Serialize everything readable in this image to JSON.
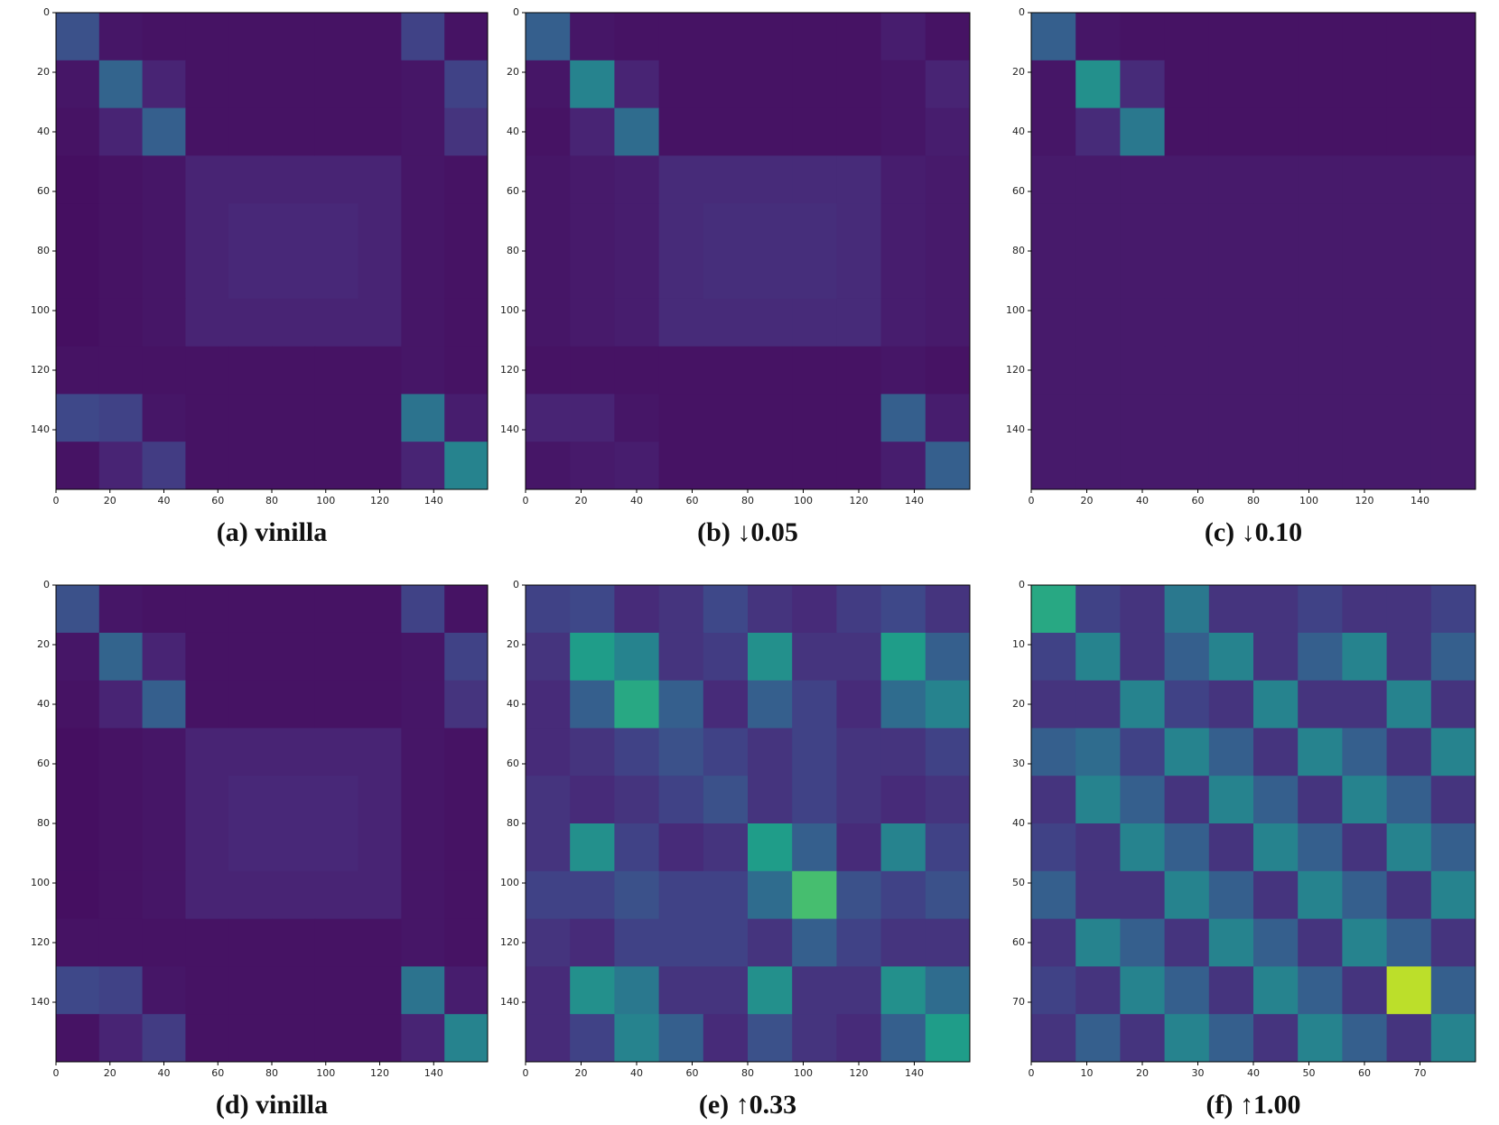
{
  "chart_data": [
    {
      "type": "heatmap",
      "caption": "(a) vinilla",
      "colormap": "viridis",
      "zlim": [
        0,
        1
      ],
      "y_inverted": true,
      "xlim": [
        0,
        160
      ],
      "ylim": [
        0,
        160
      ],
      "xticks": [
        0,
        20,
        40,
        60,
        80,
        100,
        120,
        140
      ],
      "yticks": [
        0,
        20,
        40,
        60,
        80,
        100,
        120,
        140
      ],
      "z": [
        [
          0.25,
          0.06,
          0.05,
          0.05,
          0.05,
          0.05,
          0.05,
          0.05,
          0.2,
          0.05
        ],
        [
          0.06,
          0.32,
          0.1,
          0.05,
          0.05,
          0.05,
          0.05,
          0.05,
          0.06,
          0.2
        ],
        [
          0.05,
          0.1,
          0.3,
          0.05,
          0.05,
          0.05,
          0.05,
          0.05,
          0.06,
          0.15
        ],
        [
          0.04,
          0.05,
          0.06,
          0.1,
          0.1,
          0.1,
          0.1,
          0.1,
          0.06,
          0.05
        ],
        [
          0.04,
          0.05,
          0.06,
          0.1,
          0.11,
          0.11,
          0.11,
          0.1,
          0.06,
          0.05
        ],
        [
          0.04,
          0.05,
          0.06,
          0.1,
          0.11,
          0.11,
          0.11,
          0.1,
          0.06,
          0.05
        ],
        [
          0.04,
          0.05,
          0.06,
          0.1,
          0.1,
          0.1,
          0.1,
          0.1,
          0.06,
          0.05
        ],
        [
          0.05,
          0.05,
          0.05,
          0.05,
          0.05,
          0.05,
          0.05,
          0.05,
          0.06,
          0.05
        ],
        [
          0.22,
          0.2,
          0.06,
          0.05,
          0.05,
          0.05,
          0.05,
          0.05,
          0.38,
          0.08
        ],
        [
          0.05,
          0.1,
          0.18,
          0.05,
          0.05,
          0.05,
          0.05,
          0.05,
          0.1,
          0.45
        ]
      ]
    },
    {
      "type": "heatmap",
      "caption": "(b) ↓0.05",
      "colormap": "viridis",
      "zlim": [
        0,
        1
      ],
      "y_inverted": true,
      "xlim": [
        0,
        160
      ],
      "ylim": [
        0,
        160
      ],
      "xticks": [
        0,
        20,
        40,
        60,
        80,
        100,
        120,
        140
      ],
      "yticks": [
        0,
        20,
        40,
        60,
        80,
        100,
        120,
        140
      ],
      "z": [
        [
          0.3,
          0.06,
          0.05,
          0.05,
          0.05,
          0.05,
          0.05,
          0.05,
          0.08,
          0.05
        ],
        [
          0.06,
          0.45,
          0.1,
          0.05,
          0.05,
          0.05,
          0.05,
          0.05,
          0.06,
          0.1
        ],
        [
          0.05,
          0.1,
          0.35,
          0.05,
          0.05,
          0.05,
          0.05,
          0.05,
          0.06,
          0.08
        ],
        [
          0.06,
          0.07,
          0.08,
          0.12,
          0.12,
          0.12,
          0.12,
          0.12,
          0.08,
          0.07
        ],
        [
          0.06,
          0.07,
          0.08,
          0.12,
          0.13,
          0.13,
          0.13,
          0.12,
          0.08,
          0.07
        ],
        [
          0.06,
          0.07,
          0.08,
          0.12,
          0.13,
          0.13,
          0.13,
          0.12,
          0.08,
          0.07
        ],
        [
          0.06,
          0.07,
          0.08,
          0.12,
          0.12,
          0.12,
          0.12,
          0.12,
          0.08,
          0.07
        ],
        [
          0.05,
          0.05,
          0.05,
          0.05,
          0.05,
          0.05,
          0.05,
          0.05,
          0.06,
          0.05
        ],
        [
          0.1,
          0.1,
          0.06,
          0.05,
          0.05,
          0.05,
          0.05,
          0.05,
          0.3,
          0.08
        ],
        [
          0.06,
          0.07,
          0.08,
          0.05,
          0.05,
          0.05,
          0.05,
          0.05,
          0.08,
          0.3
        ]
      ]
    },
    {
      "type": "heatmap",
      "caption": "(c) ↓0.10",
      "colormap": "viridis",
      "zlim": [
        0,
        1
      ],
      "y_inverted": true,
      "xlim": [
        0,
        160
      ],
      "ylim": [
        0,
        160
      ],
      "xticks": [
        0,
        20,
        40,
        60,
        80,
        100,
        120,
        140
      ],
      "yticks": [
        0,
        20,
        40,
        60,
        80,
        100,
        120,
        140
      ],
      "z": [
        [
          0.3,
          0.06,
          0.05,
          0.05,
          0.05,
          0.05,
          0.05,
          0.05,
          0.05,
          0.05
        ],
        [
          0.06,
          0.5,
          0.12,
          0.05,
          0.05,
          0.05,
          0.05,
          0.05,
          0.05,
          0.05
        ],
        [
          0.06,
          0.12,
          0.4,
          0.05,
          0.05,
          0.05,
          0.05,
          0.05,
          0.05,
          0.05
        ],
        [
          0.07,
          0.07,
          0.07,
          0.07,
          0.07,
          0.07,
          0.07,
          0.07,
          0.07,
          0.07
        ],
        [
          0.07,
          0.07,
          0.07,
          0.07,
          0.07,
          0.07,
          0.07,
          0.07,
          0.07,
          0.07
        ],
        [
          0.07,
          0.07,
          0.07,
          0.07,
          0.07,
          0.07,
          0.07,
          0.07,
          0.07,
          0.07
        ],
        [
          0.07,
          0.07,
          0.07,
          0.07,
          0.07,
          0.07,
          0.07,
          0.07,
          0.07,
          0.07
        ],
        [
          0.07,
          0.07,
          0.07,
          0.07,
          0.07,
          0.07,
          0.07,
          0.07,
          0.07,
          0.07
        ],
        [
          0.07,
          0.07,
          0.07,
          0.07,
          0.07,
          0.07,
          0.07,
          0.07,
          0.07,
          0.07
        ],
        [
          0.07,
          0.07,
          0.07,
          0.07,
          0.07,
          0.07,
          0.07,
          0.07,
          0.07,
          0.07
        ]
      ]
    },
    {
      "type": "heatmap",
      "caption": "(d) vinilla",
      "colormap": "viridis",
      "zlim": [
        0,
        1
      ],
      "y_inverted": true,
      "xlim": [
        0,
        160
      ],
      "ylim": [
        0,
        160
      ],
      "xticks": [
        0,
        20,
        40,
        60,
        80,
        100,
        120,
        140
      ],
      "yticks": [
        0,
        20,
        40,
        60,
        80,
        100,
        120,
        140
      ],
      "z": [
        [
          0.25,
          0.06,
          0.05,
          0.05,
          0.05,
          0.05,
          0.05,
          0.05,
          0.2,
          0.05
        ],
        [
          0.06,
          0.32,
          0.1,
          0.05,
          0.05,
          0.05,
          0.05,
          0.05,
          0.06,
          0.2
        ],
        [
          0.05,
          0.1,
          0.3,
          0.05,
          0.05,
          0.05,
          0.05,
          0.05,
          0.06,
          0.15
        ],
        [
          0.04,
          0.05,
          0.06,
          0.1,
          0.1,
          0.1,
          0.1,
          0.1,
          0.06,
          0.05
        ],
        [
          0.04,
          0.05,
          0.06,
          0.1,
          0.11,
          0.11,
          0.11,
          0.1,
          0.06,
          0.05
        ],
        [
          0.04,
          0.05,
          0.06,
          0.1,
          0.11,
          0.11,
          0.11,
          0.1,
          0.06,
          0.05
        ],
        [
          0.04,
          0.05,
          0.06,
          0.1,
          0.1,
          0.1,
          0.1,
          0.1,
          0.06,
          0.05
        ],
        [
          0.05,
          0.05,
          0.05,
          0.05,
          0.05,
          0.05,
          0.05,
          0.05,
          0.06,
          0.05
        ],
        [
          0.22,
          0.2,
          0.06,
          0.05,
          0.05,
          0.05,
          0.05,
          0.05,
          0.38,
          0.08
        ],
        [
          0.05,
          0.1,
          0.18,
          0.05,
          0.05,
          0.05,
          0.05,
          0.05,
          0.1,
          0.45
        ]
      ]
    },
    {
      "type": "heatmap",
      "caption": "(e) ↑0.33",
      "colormap": "viridis",
      "zlim": [
        0,
        1
      ],
      "y_inverted": true,
      "xlim": [
        0,
        160
      ],
      "ylim": [
        0,
        160
      ],
      "xticks": [
        0,
        20,
        40,
        60,
        80,
        100,
        120,
        140
      ],
      "yticks": [
        0,
        20,
        40,
        60,
        80,
        100,
        120,
        140
      ],
      "z": [
        [
          0.2,
          0.22,
          0.12,
          0.15,
          0.22,
          0.15,
          0.12,
          0.18,
          0.22,
          0.15
        ],
        [
          0.15,
          0.55,
          0.45,
          0.15,
          0.18,
          0.5,
          0.15,
          0.15,
          0.55,
          0.3
        ],
        [
          0.12,
          0.3,
          0.6,
          0.3,
          0.12,
          0.3,
          0.2,
          0.12,
          0.35,
          0.45
        ],
        [
          0.12,
          0.15,
          0.2,
          0.25,
          0.2,
          0.15,
          0.2,
          0.15,
          0.15,
          0.2
        ],
        [
          0.15,
          0.12,
          0.15,
          0.2,
          0.25,
          0.15,
          0.2,
          0.15,
          0.12,
          0.15
        ],
        [
          0.15,
          0.5,
          0.2,
          0.12,
          0.15,
          0.55,
          0.3,
          0.12,
          0.45,
          0.2
        ],
        [
          0.2,
          0.2,
          0.25,
          0.2,
          0.2,
          0.35,
          0.7,
          0.25,
          0.2,
          0.25
        ],
        [
          0.15,
          0.12,
          0.2,
          0.2,
          0.2,
          0.15,
          0.3,
          0.2,
          0.15,
          0.15
        ],
        [
          0.12,
          0.5,
          0.4,
          0.15,
          0.15,
          0.5,
          0.15,
          0.15,
          0.5,
          0.35
        ],
        [
          0.12,
          0.2,
          0.45,
          0.3,
          0.12,
          0.25,
          0.15,
          0.12,
          0.3,
          0.55
        ]
      ]
    },
    {
      "type": "heatmap",
      "caption": "(f) ↑1.00",
      "colormap": "viridis",
      "zlim": [
        0,
        1
      ],
      "y_inverted": true,
      "xlim": [
        0,
        80
      ],
      "ylim": [
        0,
        80
      ],
      "xticks": [
        0,
        10,
        20,
        30,
        40,
        50,
        60,
        70
      ],
      "yticks": [
        0,
        10,
        20,
        30,
        40,
        50,
        60,
        70
      ],
      "z": [
        [
          0.6,
          0.2,
          0.15,
          0.4,
          0.15,
          0.15,
          0.2,
          0.15,
          0.15,
          0.2
        ],
        [
          0.2,
          0.45,
          0.15,
          0.3,
          0.45,
          0.15,
          0.3,
          0.45,
          0.15,
          0.3
        ],
        [
          0.15,
          0.15,
          0.45,
          0.2,
          0.15,
          0.45,
          0.15,
          0.15,
          0.45,
          0.15
        ],
        [
          0.3,
          0.35,
          0.2,
          0.45,
          0.3,
          0.15,
          0.45,
          0.3,
          0.15,
          0.45
        ],
        [
          0.15,
          0.45,
          0.3,
          0.15,
          0.45,
          0.3,
          0.15,
          0.45,
          0.3,
          0.15
        ],
        [
          0.2,
          0.15,
          0.45,
          0.3,
          0.15,
          0.45,
          0.3,
          0.15,
          0.45,
          0.3
        ],
        [
          0.3,
          0.15,
          0.15,
          0.45,
          0.3,
          0.15,
          0.45,
          0.3,
          0.15,
          0.45
        ],
        [
          0.15,
          0.45,
          0.3,
          0.15,
          0.45,
          0.3,
          0.15,
          0.45,
          0.3,
          0.15
        ],
        [
          0.2,
          0.15,
          0.45,
          0.3,
          0.15,
          0.45,
          0.3,
          0.15,
          0.9,
          0.3
        ],
        [
          0.15,
          0.3,
          0.15,
          0.45,
          0.3,
          0.15,
          0.45,
          0.3,
          0.15,
          0.45
        ]
      ]
    }
  ]
}
